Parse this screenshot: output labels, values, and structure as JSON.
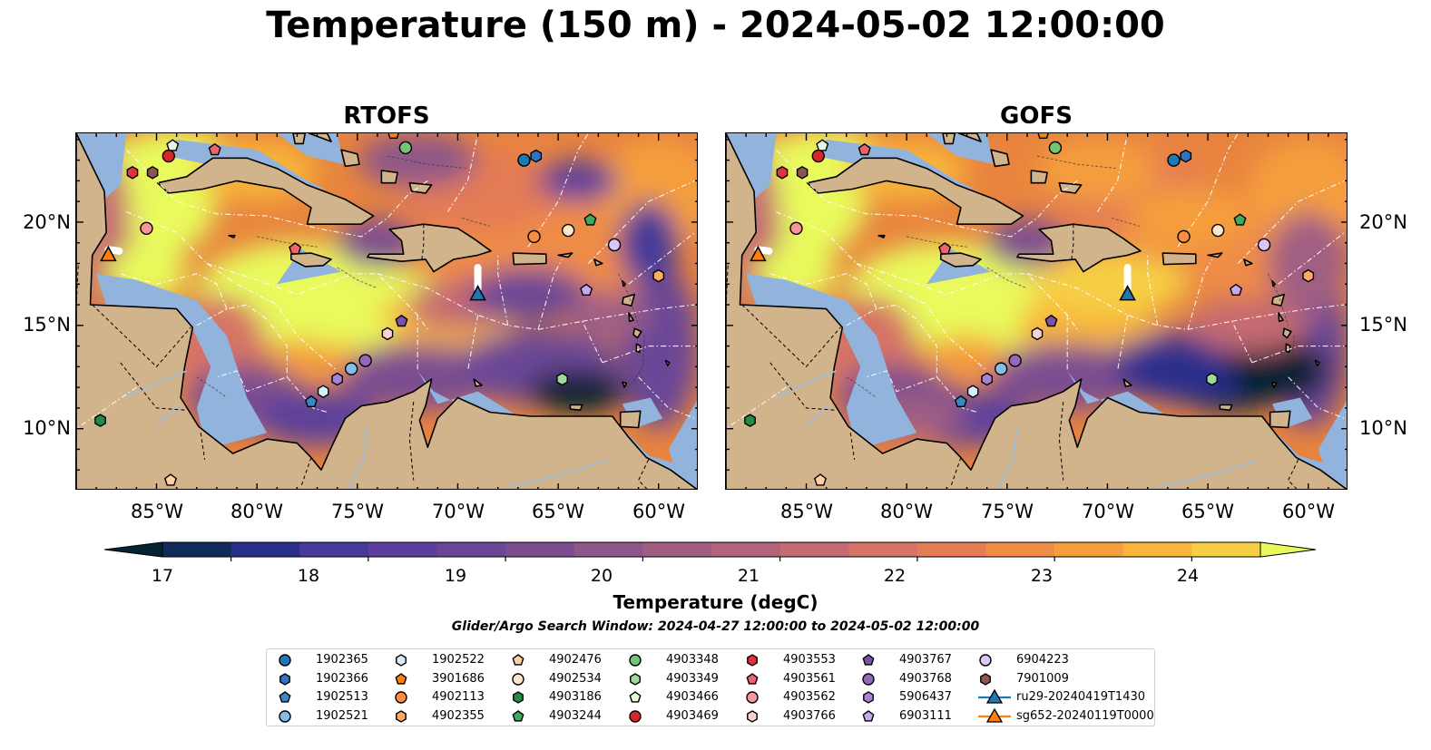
{
  "title": "Temperature (150 m) - 2024-05-02 12:00:00",
  "panels": [
    {
      "title": "RTOFS",
      "variant": "rtofs"
    },
    {
      "title": "GOFS",
      "variant": "gofs"
    }
  ],
  "lon_labels": [
    "85°W",
    "80°W",
    "75°W",
    "70°W",
    "65°W",
    "60°W"
  ],
  "lat_labels": [
    "20°N",
    "15°N",
    "10°N"
  ],
  "colorbar": {
    "label": "Temperature (degC)",
    "ticks": [
      "17",
      "18",
      "19",
      "20",
      "21",
      "22",
      "23",
      "24"
    ],
    "min": 16.5,
    "max": 24.5,
    "step": 0.5,
    "extend": "both",
    "colors": [
      "#042333",
      "#0f2b5b",
      "#2a2f8a",
      "#453a99",
      "#5b3f9c",
      "#6b4696",
      "#7c4e90",
      "#8e5689",
      "#a05e83",
      "#b2637c",
      "#c46a72",
      "#d57366",
      "#e47c55",
      "#ef8c46",
      "#f59e3d",
      "#f8b43b",
      "#f6cf45",
      "#e8fa5b"
    ]
  },
  "search_window": "Glider/Argo Search Window: 2024-04-27 12:00:00 to 2024-05-02 12:00:00",
  "legend": [
    {
      "label": "1902365",
      "marker": "circle",
      "color": "#1f77b4"
    },
    {
      "label": "1902366",
      "marker": "hexagon",
      "color": "#2f74c0"
    },
    {
      "label": "1902513",
      "marker": "pentagon",
      "color": "#3d86c6"
    },
    {
      "label": "1902521",
      "marker": "circle",
      "color": "#86bde6"
    },
    {
      "label": "1902522",
      "marker": "hexagon",
      "color": "#d7ecf8"
    },
    {
      "label": "3901686",
      "marker": "pentagon",
      "color": "#ff7f0e"
    },
    {
      "label": "4902113",
      "marker": "circle",
      "color": "#fd8d3c"
    },
    {
      "label": "4902355",
      "marker": "hexagon",
      "color": "#fdab67"
    },
    {
      "label": "4902476",
      "marker": "pentagon",
      "color": "#fdd0a2"
    },
    {
      "label": "4902534",
      "marker": "circle",
      "color": "#fde6cf"
    },
    {
      "label": "4903186",
      "marker": "hexagon",
      "color": "#238b45"
    },
    {
      "label": "4903244",
      "marker": "pentagon",
      "color": "#41ab5d"
    },
    {
      "label": "4903348",
      "marker": "circle",
      "color": "#74c476"
    },
    {
      "label": "4903349",
      "marker": "hexagon",
      "color": "#a1d99b"
    },
    {
      "label": "4903466",
      "marker": "pentagon",
      "color": "#e5f5e0"
    },
    {
      "label": "4903469",
      "marker": "circle",
      "color": "#d62728"
    },
    {
      "label": "4903553",
      "marker": "hexagon",
      "color": "#e0323a"
    },
    {
      "label": "4903561",
      "marker": "pentagon",
      "color": "#f0636a"
    },
    {
      "label": "4903562",
      "marker": "circle",
      "color": "#f7969a"
    },
    {
      "label": "4903766",
      "marker": "hexagon",
      "color": "#fbd0d2"
    },
    {
      "label": "4903767",
      "marker": "pentagon",
      "color": "#7b52ab"
    },
    {
      "label": "4903768",
      "marker": "circle",
      "color": "#9467bd"
    },
    {
      "label": "5906437",
      "marker": "hexagon",
      "color": "#a782d6"
    },
    {
      "label": "6903111",
      "marker": "pentagon",
      "color": "#c7a8ee"
    },
    {
      "label": "6904223",
      "marker": "circle",
      "color": "#ddc6f7"
    },
    {
      "label": "7901009",
      "marker": "hexagon",
      "color": "#8c564b"
    },
    {
      "label": "ru29-20240419T1430",
      "marker": "triangle-line",
      "color": "#1f77b4"
    },
    {
      "label": "sg652-20240119T0000",
      "marker": "triangle-line",
      "color": "#ff7f0e"
    }
  ],
  "platforms": [
    {
      "id": "1902365",
      "lon": -66.7,
      "lat": 23.0
    },
    {
      "id": "1902366",
      "lon": -66.1,
      "lat": 23.2
    },
    {
      "id": "1902513",
      "lon": -77.3,
      "lat": 11.3
    },
    {
      "id": "1902521",
      "lon": -75.3,
      "lat": 12.9
    },
    {
      "id": "1902522",
      "lon": -76.7,
      "lat": 11.8
    },
    {
      "id": "3901686",
      "lon": -73.2,
      "lat": 24.3
    },
    {
      "id": "4902113",
      "lon": -66.2,
      "lat": 19.3
    },
    {
      "id": "4902355",
      "lon": -60.0,
      "lat": 17.4
    },
    {
      "id": "4902476",
      "lon": -84.3,
      "lat": 7.5
    },
    {
      "id": "4902534",
      "lon": -64.5,
      "lat": 19.6
    },
    {
      "id": "4903186",
      "lon": -87.8,
      "lat": 10.4
    },
    {
      "id": "4903244",
      "lon": -63.4,
      "lat": 20.1
    },
    {
      "id": "4903348",
      "lon": -72.6,
      "lat": 23.6
    },
    {
      "id": "4903349",
      "lon": -64.8,
      "lat": 12.4
    },
    {
      "id": "4903466",
      "lon": -84.2,
      "lat": 23.7
    },
    {
      "id": "4903469",
      "lon": -84.4,
      "lat": 23.2
    },
    {
      "id": "4903553",
      "lon": -86.2,
      "lat": 22.4
    },
    {
      "id": "4903561",
      "lon": -78.1,
      "lat": 18.7
    },
    {
      "id": "4903562",
      "lon": -85.5,
      "lat": 19.7
    },
    {
      "id": "4903766",
      "lon": -73.5,
      "lat": 14.6
    },
    {
      "id": "4903767",
      "lon": -72.8,
      "lat": 15.2
    },
    {
      "id": "4903768",
      "lon": -74.6,
      "lat": 13.3
    },
    {
      "id": "5906437",
      "lon": -76.0,
      "lat": 12.4
    },
    {
      "id": "6903111",
      "lon": -63.6,
      "lat": 16.7
    },
    {
      "id": "6904223",
      "lon": -62.2,
      "lat": 18.9
    },
    {
      "id": "7901009",
      "lon": -85.2,
      "lat": 22.4
    },
    {
      "id": "4903561b",
      "ref": "4903561",
      "lon": -82.1,
      "lat": 23.5
    }
  ],
  "gliders": [
    {
      "id": "ru29-20240419T1430",
      "lon": -69.0,
      "lat": 16.5,
      "track_to_lat": 17.8
    },
    {
      "id": "sg652-20240119T0000",
      "lon": -87.4,
      "lat": 18.4,
      "track_to_lat": 18.6
    }
  ],
  "extent": {
    "lon_min": -89.0,
    "lon_max": -58.0,
    "lat_min": 7.0,
    "lat_max": 24.3
  }
}
